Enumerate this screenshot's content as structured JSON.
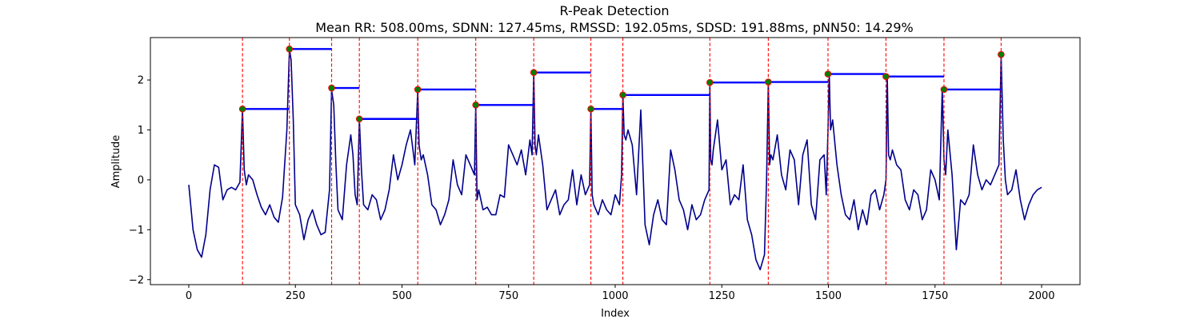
{
  "chart_data": {
    "type": "line",
    "title": "R-Peak Detection",
    "subtitle": "Mean RR: 508.00ms, SDNN: 127.45ms, RMSSD: 192.05ms, SDSD: 191.88ms, pNN50: 14.29%",
    "xlabel": "Index",
    "ylabel": "Amplitude",
    "xlim": [
      -90,
      2090
    ],
    "ylim": [
      -2.1,
      2.85
    ],
    "xticks": [
      0,
      250,
      500,
      750,
      1000,
      1250,
      1500,
      1750,
      2000
    ],
    "yticks": [
      -2,
      -1,
      0,
      1,
      2
    ],
    "grid": false,
    "colors": {
      "signal": "#00008b",
      "peak_marker_fill": "#008000",
      "peak_marker_edge": "#ff0000",
      "peak_line": "#ff0000",
      "rr_segment": "#0000ff"
    },
    "signal": {
      "x": [
        0,
        10,
        20,
        30,
        40,
        50,
        60,
        70,
        80,
        90,
        100,
        110,
        120,
        126,
        130,
        135,
        140,
        150,
        160,
        170,
        180,
        190,
        200,
        210,
        220,
        230,
        236,
        240,
        245,
        250,
        260,
        270,
        280,
        290,
        300,
        310,
        320,
        330,
        335,
        340,
        345,
        350,
        360,
        370,
        380,
        385,
        390,
        395,
        400,
        405,
        410,
        420,
        430,
        440,
        450,
        460,
        470,
        480,
        490,
        500,
        510,
        520,
        530,
        537,
        540,
        545,
        550,
        560,
        570,
        580,
        590,
        600,
        610,
        620,
        630,
        640,
        650,
        660,
        670,
        673,
        676,
        680,
        690,
        700,
        710,
        720,
        730,
        740,
        750,
        760,
        770,
        780,
        790,
        800,
        805,
        809,
        812,
        815,
        820,
        830,
        840,
        850,
        860,
        870,
        880,
        890,
        900,
        910,
        920,
        930,
        940,
        943,
        946,
        950,
        960,
        970,
        980,
        990,
        1000,
        1010,
        1015,
        1018,
        1021,
        1025,
        1030,
        1040,
        1050,
        1060,
        1070,
        1080,
        1090,
        1100,
        1110,
        1120,
        1130,
        1140,
        1150,
        1160,
        1170,
        1180,
        1190,
        1200,
        1210,
        1220,
        1222,
        1224,
        1227,
        1230,
        1240,
        1250,
        1260,
        1270,
        1280,
        1290,
        1300,
        1310,
        1320,
        1330,
        1340,
        1350,
        1355,
        1359,
        1362,
        1365,
        1370,
        1380,
        1390,
        1400,
        1410,
        1420,
        1430,
        1440,
        1450,
        1460,
        1470,
        1480,
        1490,
        1495,
        1499,
        1502,
        1505,
        1510,
        1520,
        1530,
        1540,
        1550,
        1560,
        1570,
        1580,
        1590,
        1600,
        1610,
        1620,
        1630,
        1635,
        1638,
        1641,
        1645,
        1650,
        1660,
        1670,
        1680,
        1690,
        1700,
        1710,
        1720,
        1730,
        1740,
        1750,
        1760,
        1767,
        1771,
        1775,
        1780,
        1790,
        1800,
        1810,
        1820,
        1830,
        1840,
        1850,
        1860,
        1870,
        1880,
        1890,
        1900,
        1905,
        1910,
        1915,
        1920,
        1930,
        1940,
        1950,
        1960,
        1970,
        1980,
        1990,
        2000
      ],
      "y": [
        -0.1,
        -1.0,
        -1.4,
        -1.55,
        -1.1,
        -0.2,
        0.3,
        0.25,
        -0.4,
        -0.2,
        -0.15,
        -0.2,
        -0.05,
        1.42,
        0.2,
        -0.1,
        0.1,
        0.0,
        -0.3,
        -0.55,
        -0.7,
        -0.5,
        -0.75,
        -0.85,
        -0.35,
        1.0,
        2.62,
        2.4,
        1.2,
        -0.5,
        -0.7,
        -1.2,
        -0.8,
        -0.6,
        -0.9,
        -1.1,
        -1.05,
        -0.2,
        1.8,
        1.5,
        0.3,
        -0.6,
        -0.8,
        0.3,
        0.9,
        0.5,
        -0.3,
        -0.5,
        1.22,
        0.2,
        -0.5,
        -0.6,
        -0.3,
        -0.4,
        -0.8,
        -0.6,
        -0.2,
        0.5,
        0.0,
        0.3,
        0.7,
        1.0,
        0.3,
        1.8,
        0.7,
        0.4,
        0.5,
        0.1,
        -0.5,
        -0.6,
        -0.9,
        -0.7,
        -0.4,
        0.4,
        -0.1,
        -0.3,
        0.5,
        0.3,
        0.1,
        1.5,
        -0.4,
        -0.2,
        -0.6,
        -0.55,
        -0.7,
        -0.7,
        -0.3,
        -0.35,
        0.7,
        0.5,
        0.3,
        0.6,
        0.1,
        0.8,
        0.5,
        2.15,
        0.7,
        0.5,
        0.9,
        0.3,
        -0.6,
        -0.4,
        -0.2,
        -0.7,
        -0.5,
        -0.4,
        0.2,
        -0.5,
        0.1,
        -0.3,
        -0.1,
        1.42,
        -0.3,
        -0.5,
        -0.7,
        -0.4,
        -0.6,
        -0.7,
        -0.3,
        -0.5,
        0.1,
        1.7,
        0.9,
        0.8,
        1.0,
        0.7,
        -0.3,
        1.4,
        -0.9,
        -1.3,
        -0.7,
        -0.4,
        -0.8,
        -0.9,
        0.6,
        0.2,
        -0.4,
        -0.6,
        -1.0,
        -0.5,
        -0.8,
        -0.7,
        -0.4,
        -0.2,
        1.95,
        0.4,
        0.3,
        0.6,
        1.2,
        0.2,
        0.4,
        -0.5,
        -0.3,
        -0.4,
        0.3,
        -0.8,
        -1.1,
        -1.6,
        -1.8,
        -1.5,
        0.0,
        1.96,
        0.3,
        0.5,
        0.4,
        0.9,
        0.1,
        -0.2,
        0.6,
        0.4,
        -0.5,
        0.5,
        0.8,
        -0.5,
        -0.8,
        0.4,
        0.5,
        -0.3,
        1.0,
        2.12,
        1.0,
        1.2,
        0.3,
        -0.3,
        -0.7,
        -0.8,
        -0.4,
        -1.0,
        -0.6,
        -0.9,
        -0.3,
        -0.2,
        -0.6,
        -0.3,
        0.0,
        2.07,
        0.5,
        0.4,
        0.6,
        0.3,
        0.2,
        -0.4,
        -0.6,
        -0.2,
        -0.3,
        -0.8,
        -0.6,
        0.2,
        0.0,
        -0.4,
        1.82,
        0.4,
        0.1,
        1.0,
        0.1,
        -1.4,
        -0.4,
        -0.5,
        -0.3,
        0.7,
        0.1,
        -0.2,
        0.0,
        -0.1,
        0.1,
        0.3,
        2.5,
        0.8,
        0.0,
        -0.3,
        -0.2,
        0.2,
        -0.4,
        -0.8,
        -0.5,
        -0.3,
        -0.2,
        -0.15
      ]
    },
    "peaks": {
      "x": [
        126,
        236,
        335,
        400,
        537,
        673,
        809,
        943,
        1018,
        1222,
        1359,
        1499,
        1635,
        1771,
        1905
      ],
      "y": [
        1.42,
        2.62,
        1.84,
        1.22,
        1.81,
        1.5,
        2.15,
        1.42,
        1.7,
        1.95,
        1.96,
        2.12,
        2.07,
        1.81,
        2.51
      ]
    },
    "rr_segments": [
      {
        "x0": 126,
        "x1": 236,
        "y": 1.42
      },
      {
        "x0": 236,
        "x1": 335,
        "y": 2.62
      },
      {
        "x0": 335,
        "x1": 400,
        "y": 1.84
      },
      {
        "x0": 400,
        "x1": 537,
        "y": 1.22
      },
      {
        "x0": 537,
        "x1": 673,
        "y": 1.81
      },
      {
        "x0": 673,
        "x1": 809,
        "y": 1.5
      },
      {
        "x0": 809,
        "x1": 943,
        "y": 2.15
      },
      {
        "x0": 943,
        "x1": 1018,
        "y": 1.42
      },
      {
        "x0": 1018,
        "x1": 1222,
        "y": 1.7
      },
      {
        "x0": 1222,
        "x1": 1359,
        "y": 1.95
      },
      {
        "x0": 1359,
        "x1": 1499,
        "y": 1.96
      },
      {
        "x0": 1499,
        "x1": 1635,
        "y": 2.12
      },
      {
        "x0": 1635,
        "x1": 1771,
        "y": 2.07
      },
      {
        "x0": 1771,
        "x1": 1905,
        "y": 1.81
      }
    ]
  }
}
